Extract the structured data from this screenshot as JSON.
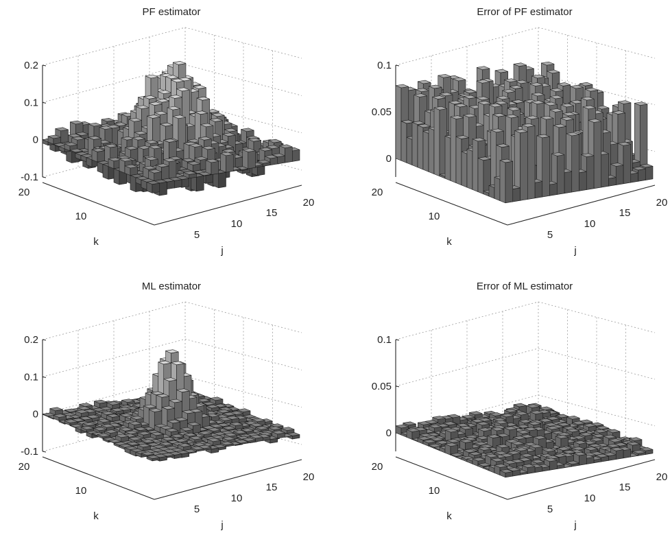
{
  "chart_data": [
    {
      "type": "bar3d",
      "title": "PF estimator",
      "xlabel": "j",
      "ylabel": "k",
      "xticks": [
        "5",
        "10",
        "15",
        "20"
      ],
      "yticks": [
        "10",
        "20"
      ],
      "zticks": [
        "-0.1",
        "0",
        "0.1",
        "0.2"
      ],
      "xlim": [
        1,
        20
      ],
      "ylim": [
        1,
        20
      ],
      "zlim": [
        -0.1,
        0.2
      ],
      "grid": true,
      "surface": {
        "peak_value": 0.19,
        "peak_center_j": 11,
        "peak_center_k": 11,
        "spread": 3.2,
        "noise_amplitude": 0.045,
        "seed": 11
      }
    },
    {
      "type": "bar3d",
      "title": "Error of PF estimator",
      "xlabel": "j",
      "ylabel": "k",
      "xticks": [
        "5",
        "10",
        "15",
        "20"
      ],
      "yticks": [
        "10",
        "20"
      ],
      "zticks": [
        "0",
        "0.05",
        "0.1"
      ],
      "xlim": [
        1,
        20
      ],
      "ylim": [
        1,
        20
      ],
      "zlim": [
        -0.02,
        0.1
      ],
      "grid": true,
      "surface": {
        "peak_value": 0.0,
        "peak_center_j": 10,
        "peak_center_k": 10,
        "spread": 4.0,
        "noise_amplitude": 0.085,
        "seed": 23,
        "absolute": true
      }
    },
    {
      "type": "bar3d",
      "title": "ML estimator",
      "xlabel": "j",
      "ylabel": "k",
      "xticks": [
        "5",
        "10",
        "15",
        "20"
      ],
      "yticks": [
        "10",
        "20"
      ],
      "zticks": [
        "-0.1",
        "0",
        "0.1",
        "0.2"
      ],
      "xlim": [
        1,
        20
      ],
      "ylim": [
        1,
        20
      ],
      "zlim": [
        -0.1,
        0.2
      ],
      "grid": true,
      "surface": {
        "peak_value": 0.18,
        "peak_center_j": 11,
        "peak_center_k": 11,
        "spread": 1.8,
        "noise_amplitude": 0.012,
        "seed": 37
      }
    },
    {
      "type": "bar3d",
      "title": "Error of ML estimator",
      "xlabel": "j",
      "ylabel": "k",
      "xticks": [
        "5",
        "10",
        "15",
        "20"
      ],
      "yticks": [
        "10",
        "20"
      ],
      "zticks": [
        "0",
        "0.05",
        "0.1"
      ],
      "xlim": [
        1,
        20
      ],
      "ylim": [
        1,
        20
      ],
      "zlim": [
        -0.02,
        0.1
      ],
      "grid": true,
      "surface": {
        "peak_value": 0.008,
        "peak_center_j": 10,
        "peak_center_k": 10,
        "spread": 4.0,
        "noise_amplitude": 0.01,
        "seed": 51,
        "absolute": true
      }
    }
  ]
}
